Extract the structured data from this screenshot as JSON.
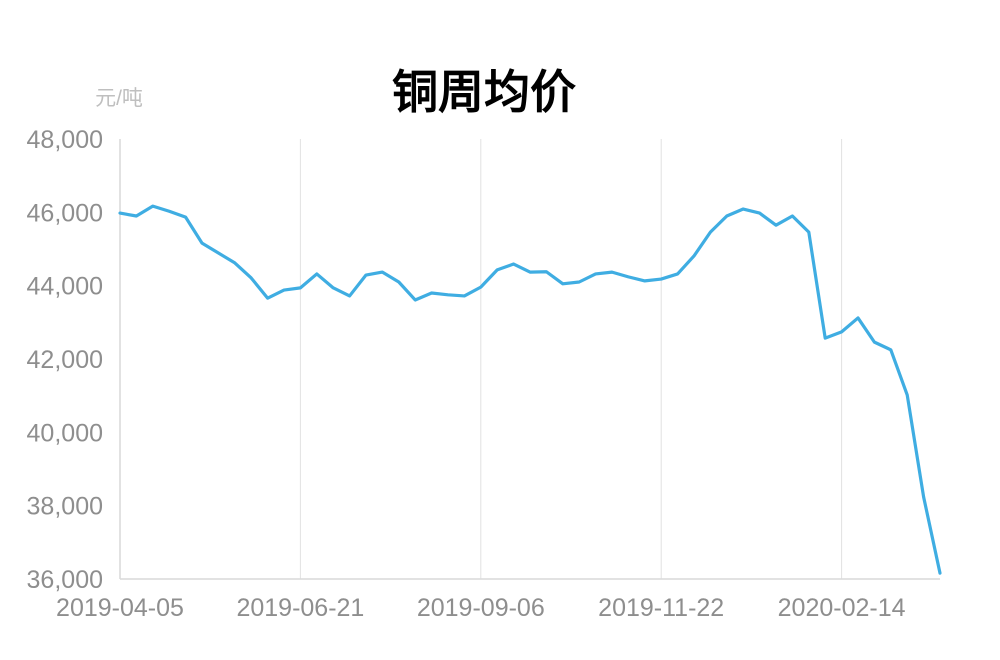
{
  "chart_data": {
    "type": "line",
    "title": "铜周均价",
    "xlabel": "",
    "ylabel": "元/吨",
    "ylim": [
      36000,
      48000
    ],
    "y_ticks": [
      {
        "value": 36000,
        "label": "36,000"
      },
      {
        "value": 38000,
        "label": "38,000"
      },
      {
        "value": 40000,
        "label": "40,000"
      },
      {
        "value": 42000,
        "label": "42,000"
      },
      {
        "value": 44000,
        "label": "44,000"
      },
      {
        "value": 46000,
        "label": "46,000"
      },
      {
        "value": 48000,
        "label": "48,000"
      }
    ],
    "x_tick_labels": [
      "2019-04-05",
      "2019-06-21",
      "2019-09-06",
      "2019-11-22",
      "2020-02-14"
    ],
    "grid": "vertical",
    "legend": "none",
    "categories": [
      "2019-04-05",
      "2019-04-12",
      "2019-04-19",
      "2019-04-26",
      "2019-05-03",
      "2019-05-10",
      "2019-05-17",
      "2019-05-24",
      "2019-05-31",
      "2019-06-07",
      "2019-06-14",
      "2019-06-21",
      "2019-06-28",
      "2019-07-05",
      "2019-07-12",
      "2019-07-19",
      "2019-07-26",
      "2019-08-02",
      "2019-08-09",
      "2019-08-16",
      "2019-08-23",
      "2019-08-30",
      "2019-09-06",
      "2019-09-13",
      "2019-09-20",
      "2019-09-27",
      "2019-10-04",
      "2019-10-11",
      "2019-10-18",
      "2019-10-25",
      "2019-11-01",
      "2019-11-08",
      "2019-11-15",
      "2019-11-22",
      "2019-11-29",
      "2019-12-06",
      "2019-12-13",
      "2019-12-20",
      "2019-12-27",
      "2020-01-03",
      "2020-01-10",
      "2020-01-17",
      "2020-01-24",
      "2020-02-07",
      "2020-02-14",
      "2020-02-21",
      "2020-02-28",
      "2020-03-06",
      "2020-03-13",
      "2020-03-20",
      "2020-03-27"
    ],
    "series": [
      {
        "color": "#3FADE2",
        "values": [
          45980,
          45900,
          46170,
          46030,
          45870,
          45160,
          44890,
          44620,
          44210,
          43660,
          43880,
          43940,
          44320,
          43940,
          43720,
          44290,
          44370,
          44100,
          43610,
          43800,
          43750,
          43720,
          43960,
          44430,
          44590,
          44370,
          44380,
          44050,
          44100,
          44320,
          44370,
          44240,
          44130,
          44180,
          44320,
          44810,
          45460,
          45900,
          46090,
          45980,
          45650,
          45900,
          45460,
          42570,
          42740,
          43120,
          42460,
          42250,
          41020,
          38240,
          36160
        ]
      }
    ]
  }
}
